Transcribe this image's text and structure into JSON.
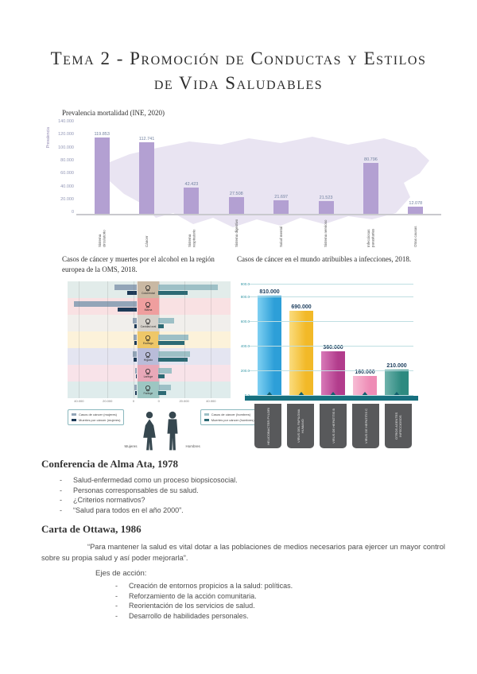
{
  "title": {
    "line1": "Tema 2 - Promoción de Conductas y Estilos",
    "line2": "de Vida Saludables"
  },
  "chart_data": [
    {
      "type": "bar",
      "title": "Prevalencia mortalidad (INE, 2020)",
      "ylabel": "Prevalencia",
      "ylim": [
        0,
        140000
      ],
      "yticks": [
        "140.000",
        "120.000",
        "100.000",
        "80.000",
        "60.000",
        "40.000",
        "20.000",
        "0"
      ],
      "categories": [
        "Sistema circulatorio",
        "Cáncer",
        "Sistema respiratorio",
        "Sistema digestivo",
        "Salud mental",
        "Sistema nervioso",
        "Infecciosas parasitarias",
        "Otras causas"
      ],
      "values": [
        119853,
        112741,
        42423,
        27508,
        21697,
        21523,
        80796,
        12078
      ],
      "value_labels": [
        "119.853",
        "112.741",
        "42.423",
        "27.508",
        "21.697",
        "21.523",
        "80.796",
        "12.078"
      ],
      "bar_color": "#b3a0d2",
      "background": "mapa de España en morado claro",
      "grid": false
    },
    {
      "type": "bar",
      "subtype": "horizontal-pyramid",
      "title": "Casos de cáncer y muertes por el alcohol en la región europea de la OMS, 2018.",
      "xticks": [
        "40.000",
        "20.000",
        "0",
        "0",
        "20.000",
        "40.000"
      ],
      "xtick_pos": [
        7,
        24.5,
        40.5,
        56,
        71.5,
        88
      ],
      "series_colors": {
        "women_cases": "#93a5b8",
        "women_deaths": "#1d3a57",
        "men_cases": "#9dc0c6",
        "men_deaths": "#2c6a74"
      },
      "legend": {
        "women_cases": "Casos de cáncer (mujeres)",
        "women_deaths": "Muertes por cáncer (mujeres)",
        "men_cases": "Casos de cáncer (hombres)",
        "men_deaths": "Muertes por cáncer (hombres)"
      },
      "gender_left": "Mujeres",
      "gender_right": "Hombres",
      "rows": [
        {
          "label": "Colorrectal",
          "icon": "colorectal-icon",
          "box_color": "#c9b8a3",
          "stripe_color": "#e2ecea",
          "women_cases": 16000,
          "women_deaths": 7000,
          "men_cases": 43000,
          "men_deaths": 21000
        },
        {
          "label": "Mama",
          "icon": "breast-icon",
          "box_color": "#ef9e9e",
          "stripe_color": "#f9e1e3",
          "women_cases": 45000,
          "women_deaths": 14000,
          "men_cases": 0,
          "men_deaths": 0
        },
        {
          "label": "Cavidad oral",
          "icon": "mouth-icon",
          "box_color": "#d6d1ca",
          "stripe_color": "#f1efec",
          "women_cases": 3000,
          "women_deaths": 2000,
          "men_cases": 11500,
          "men_deaths": 4000
        },
        {
          "label": "Esófago",
          "icon": "oesophagus-icon",
          "box_color": "#eec768",
          "stripe_color": "#fcf2da",
          "women_cases": 2500,
          "women_deaths": 2000,
          "men_cases": 22000,
          "men_deaths": 19000
        },
        {
          "label": "Hígado",
          "icon": "liver-icon",
          "box_color": "#b9bcd9",
          "stripe_color": "#e4e5f1",
          "women_cases": 3000,
          "women_deaths": 2500,
          "men_cases": 23000,
          "men_deaths": 21000
        },
        {
          "label": "Laringe",
          "icon": "larynx-icon",
          "box_color": "#e8a8b8",
          "stripe_color": "#f8e3e9",
          "women_cases": 1200,
          "women_deaths": 800,
          "men_cases": 10000,
          "men_deaths": 4500
        },
        {
          "label": "Faringe",
          "icon": "pharynx-icon",
          "box_color": "#9dc6c2",
          "stripe_color": "#dfecec",
          "women_cases": 2000,
          "women_deaths": 1200,
          "men_cases": 9000,
          "men_deaths": 6000
        }
      ]
    },
    {
      "type": "bar",
      "title": "Casos de cáncer en el mundo atribuibles a infecciones, 2018.",
      "categories": [
        "Helicobacter pylori",
        "Virus del papiloma humano",
        "Virus de hepatitis B",
        "Virus de hepatitis C",
        "Otros agentes infecciosos"
      ],
      "values": [
        810000,
        690000,
        360000,
        160000,
        210000
      ],
      "value_labels": [
        "810.000",
        "690.000",
        "360.000",
        "160.000",
        "210.000"
      ],
      "bar_colors": [
        "#2d9fd8",
        "#f2b928",
        "#b23c8c",
        "#ee8cb6",
        "#2d8a80"
      ],
      "bar_colors_light": [
        "#7fd0f2",
        "#fadc7e",
        "#d87ab8",
        "#f7bcd4",
        "#6fb3ab"
      ],
      "ylim": [
        0,
        900000
      ],
      "yticks": [
        {
          "label": "900.0",
          "value": 900
        },
        {
          "label": "800.0",
          "value": 800
        },
        {
          "label": "600.0",
          "value": 600
        },
        {
          "label": "400.0",
          "value": 400
        },
        {
          "label": "200.0",
          "value": 200
        },
        {
          "label": "0.0",
          "value": 0
        }
      ],
      "baseline_color": "#17707f",
      "label_box_color": "#58595b",
      "grid": true
    }
  ],
  "alma_ata": {
    "heading": "Conferencia de Alma Ata, 1978",
    "bullets": [
      "Salud-enfermedad como un proceso biopsicosocial.",
      "Personas corresponsables de su salud.",
      "¿Criterios normativos?",
      "“Salud para todos en el año 2000”."
    ]
  },
  "ottawa": {
    "heading": "Carta de Ottawa, 1986",
    "quote": "“Para mantener la salud es vital dotar a las poblaciones de medios necesarios para ejercer un mayor control sobre su propia salud y así poder mejorarla”.",
    "ejes_label": "Ejes de acción:",
    "bullets": [
      "Creación de entornos propicios a la salud: políticas.",
      "Reforzamiento de la acción comunitaria.",
      "Reorientación de los servicios de salud.",
      "Desarrollo de habilidades personales."
    ]
  }
}
